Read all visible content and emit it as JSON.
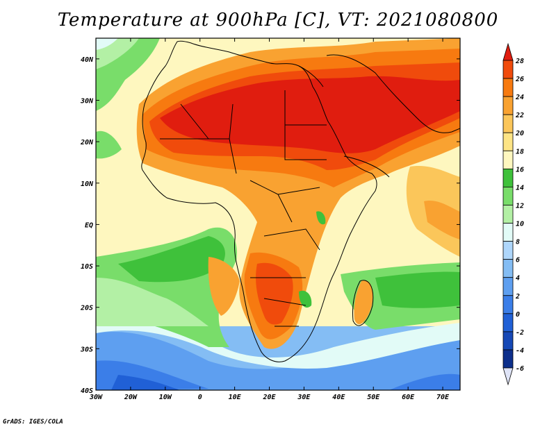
{
  "title": "Temperature at 900hPa [C], VT: 2021080800",
  "credit": "GrADS: IGES/COLA",
  "map": {
    "lon_labels": [
      "30W",
      "20W",
      "10W",
      "0",
      "10E",
      "20E",
      "30E",
      "40E",
      "50E",
      "60E",
      "70E"
    ],
    "lat_labels": [
      "40N",
      "30N",
      "20N",
      "10N",
      "EQ",
      "10S",
      "20S",
      "30S",
      "40S"
    ],
    "lon_range": [
      -30,
      75
    ],
    "lat_range": [
      -40,
      45
    ]
  },
  "colorbar": {
    "labels": [
      "28",
      "26",
      "24",
      "22",
      "20",
      "18",
      "16",
      "14",
      "12",
      "10",
      "8",
      "6",
      "4",
      "2",
      "0",
      "-2",
      "-4",
      "-6"
    ],
    "colors": [
      "#e01d0f",
      "#f04b0c",
      "#f77a10",
      "#f9a231",
      "#fbc65a",
      "#fde485",
      "#fef7bf",
      "#3fc13b",
      "#79dd6a",
      "#b3f0a5",
      "#e2fbf7",
      "#aed6fb",
      "#84bdf4",
      "#5e9ff0",
      "#3b7ee8",
      "#2060d6",
      "#1648b6",
      "#0d2f8c",
      "#0a1f66"
    ]
  }
}
